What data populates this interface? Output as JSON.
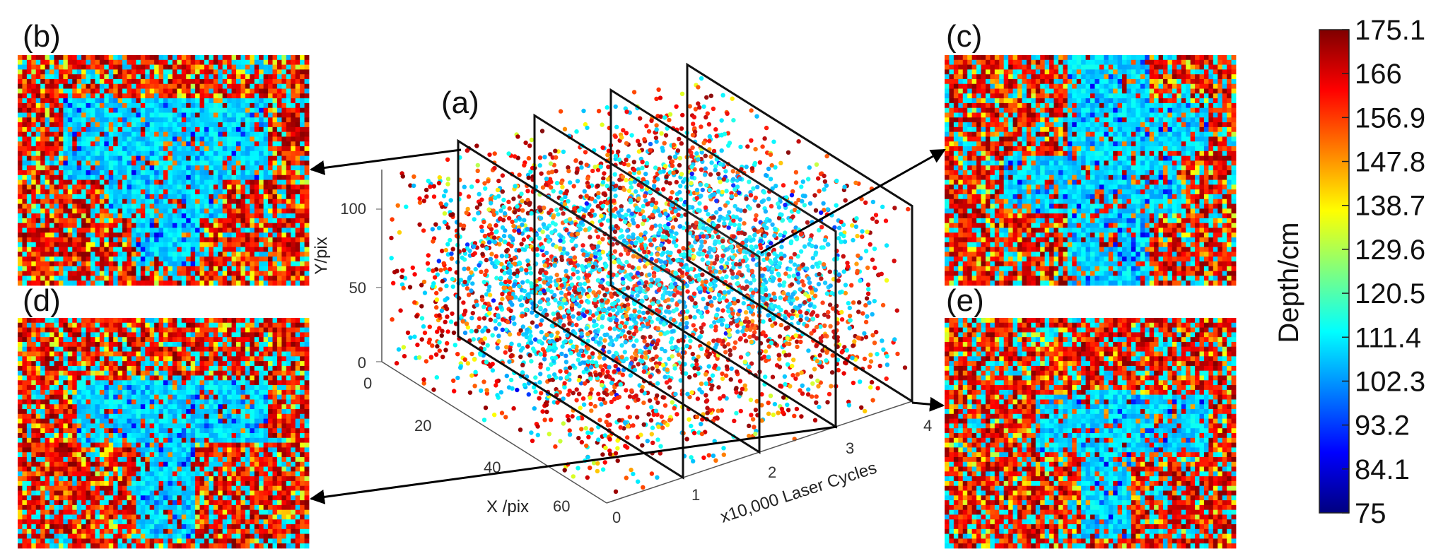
{
  "chart_data": {
    "type": "scatter",
    "title": "",
    "description_labels": {
      "panel_a": "(a)",
      "panel_b": "(b)",
      "panel_c": "(c)",
      "panel_d": "(d)",
      "panel_e": "(e)"
    },
    "axes3d": {
      "x": {
        "label": "x10,000 Laser Cycles",
        "ticks": [
          "0",
          "1",
          "2",
          "3",
          "4"
        ],
        "range": [
          0,
          4
        ]
      },
      "y": {
        "label": "X /pix",
        "ticks": [
          "0",
          "20",
          "40",
          "60"
        ],
        "range": [
          0,
          64
        ]
      },
      "z": {
        "label": "Y/pix",
        "ticks": [
          "0",
          "50",
          "100"
        ],
        "range": [
          0,
          128
        ]
      }
    },
    "slice_positions": [
      1,
      2,
      3,
      4
    ],
    "colorbar": {
      "title": "Depth/cm",
      "min": 75,
      "max": 175.1,
      "ticks": [
        "175.1",
        "166",
        "156.9",
        "147.8",
        "138.7",
        "129.6",
        "120.5",
        "111.4",
        "102.3",
        "93.2",
        "84.1",
        "75"
      ],
      "colors": [
        "#00007f",
        "#0000ff",
        "#007fff",
        "#00ffff",
        "#7fff7f",
        "#ffff00",
        "#ff7f00",
        "#ff0000",
        "#7f0000"
      ]
    }
  }
}
